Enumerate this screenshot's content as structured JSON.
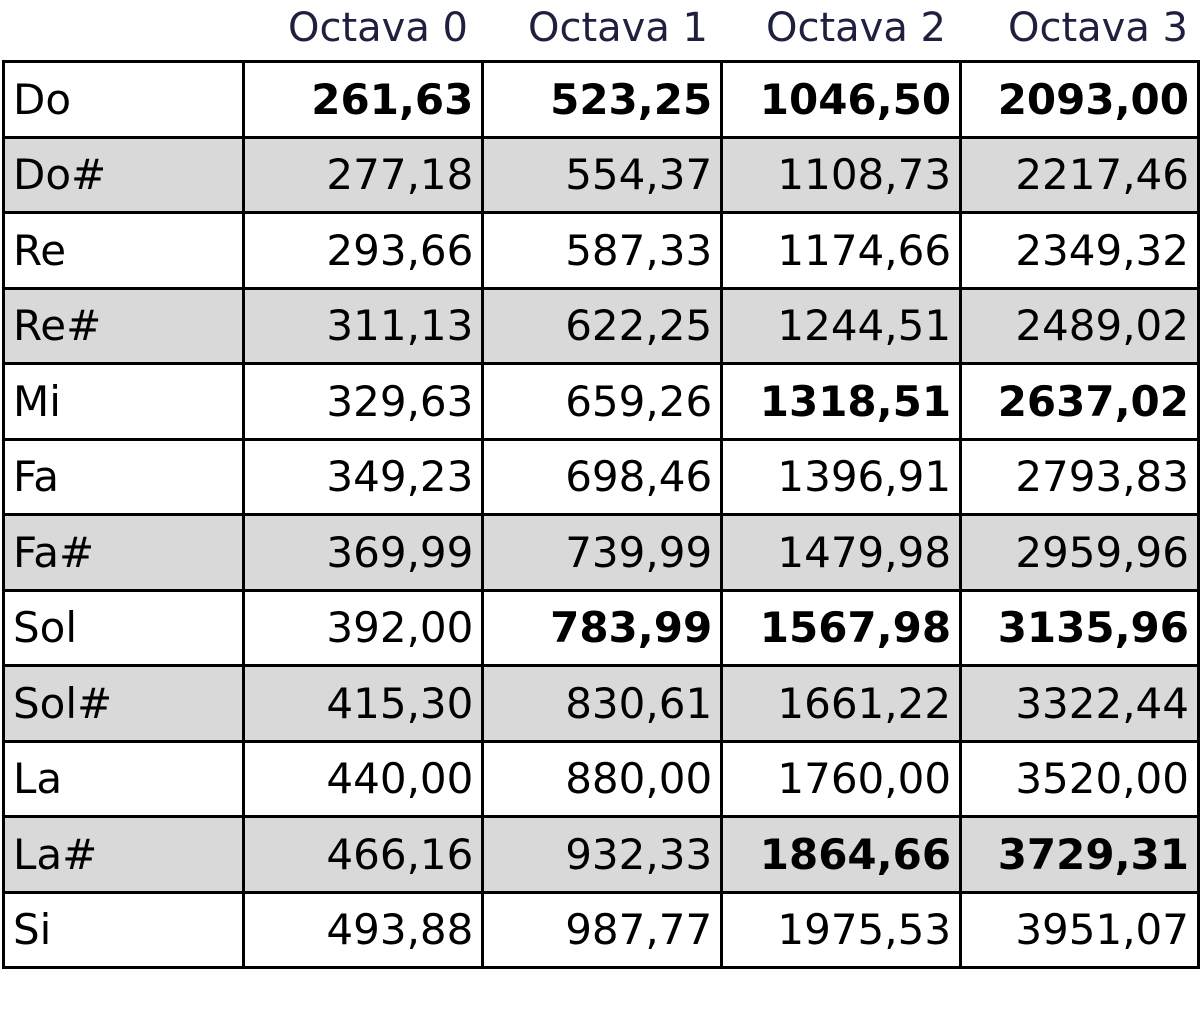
{
  "headers": [
    "Octava 0",
    "Octava 1",
    "Octava 2",
    "Octava 3"
  ],
  "rows": [
    {
      "note": "Do",
      "values": [
        "261,63",
        "523,25",
        "1046,50",
        "2093,00"
      ],
      "bold": [
        true,
        true,
        true,
        true
      ],
      "shaded": false
    },
    {
      "note": "Do#",
      "values": [
        "277,18",
        "554,37",
        "1108,73",
        "2217,46"
      ],
      "bold": [
        false,
        false,
        false,
        false
      ],
      "shaded": true
    },
    {
      "note": "Re",
      "values": [
        "293,66",
        "587,33",
        "1174,66",
        "2349,32"
      ],
      "bold": [
        false,
        false,
        false,
        false
      ],
      "shaded": false
    },
    {
      "note": "Re#",
      "values": [
        "311,13",
        "622,25",
        "1244,51",
        "2489,02"
      ],
      "bold": [
        false,
        false,
        false,
        false
      ],
      "shaded": true
    },
    {
      "note": "Mi",
      "values": [
        "329,63",
        "659,26",
        "1318,51",
        "2637,02"
      ],
      "bold": [
        false,
        false,
        true,
        true
      ],
      "shaded": false
    },
    {
      "note": "Fa",
      "values": [
        "349,23",
        "698,46",
        "1396,91",
        "2793,83"
      ],
      "bold": [
        false,
        false,
        false,
        false
      ],
      "shaded": false
    },
    {
      "note": "Fa#",
      "values": [
        "369,99",
        "739,99",
        "1479,98",
        "2959,96"
      ],
      "bold": [
        false,
        false,
        false,
        false
      ],
      "shaded": true
    },
    {
      "note": "Sol",
      "values": [
        "392,00",
        "783,99",
        "1567,98",
        "3135,96"
      ],
      "bold": [
        false,
        true,
        true,
        true
      ],
      "shaded": false
    },
    {
      "note": "Sol#",
      "values": [
        "415,30",
        "830,61",
        "1661,22",
        "3322,44"
      ],
      "bold": [
        false,
        false,
        false,
        false
      ],
      "shaded": true
    },
    {
      "note": "La",
      "values": [
        "440,00",
        "880,00",
        "1760,00",
        "3520,00"
      ],
      "bold": [
        false,
        false,
        false,
        false
      ],
      "shaded": false
    },
    {
      "note": "La#",
      "values": [
        "466,16",
        "932,33",
        "1864,66",
        "3729,31"
      ],
      "bold": [
        false,
        false,
        true,
        true
      ],
      "shaded": true
    },
    {
      "note": "Si",
      "values": [
        "493,88",
        "987,77",
        "1975,53",
        "3951,07"
      ],
      "bold": [
        false,
        false,
        false,
        false
      ],
      "shaded": false
    }
  ],
  "colors": {
    "shade": "#d9d9d9",
    "header_text": "#1f1f3f",
    "border": "#000000"
  }
}
